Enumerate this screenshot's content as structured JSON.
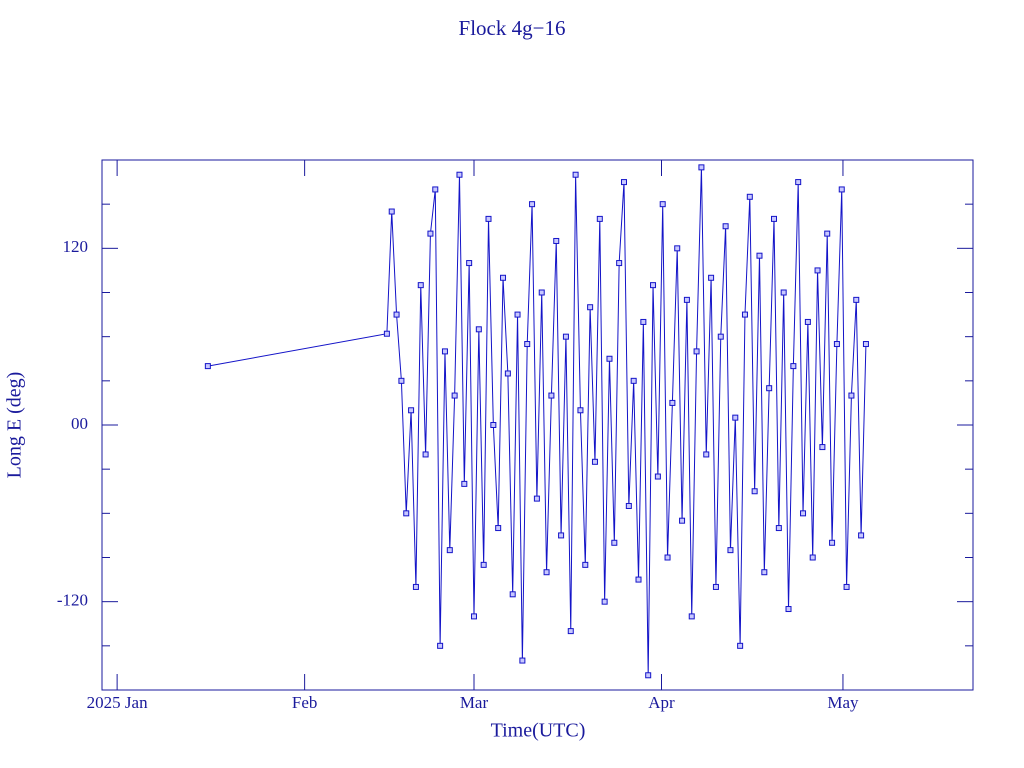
{
  "chart_data": {
    "type": "line",
    "title": "Flock 4g−16",
    "x_label": "Time(UTC)",
    "y_label": "Long E (deg)",
    "x": [
      15,
      44.6,
      45.4,
      46.2,
      47,
      47.8,
      48.6,
      49.4,
      50.2,
      51,
      51.8,
      52.6,
      53.4,
      54.2,
      55,
      55.8,
      56.6,
      57.4,
      58.2,
      59,
      59.8,
      60.6,
      61.4,
      62.2,
      63,
      63.8,
      64.6,
      65.4,
      66.2,
      67,
      67.8,
      68.6,
      69.4,
      70.2,
      71,
      71.8,
      72.6,
      73.4,
      74.2,
      75,
      75.8,
      76.6,
      77.4,
      78.2,
      79,
      79.8,
      80.6,
      81.4,
      82.2,
      83,
      83.8,
      84.6,
      85.4,
      86.2,
      87,
      87.8,
      88.6,
      89.4,
      90.2,
      91,
      91.8,
      92.6,
      93.4,
      94.2,
      95,
      95.8,
      96.6,
      97.4,
      98.2,
      99,
      99.8,
      100.6,
      101.4,
      102.2,
      103,
      103.8,
      104.6,
      105.4,
      106.2,
      107,
      107.8,
      108.6,
      109.4,
      110.2,
      111,
      111.8,
      112.6,
      113.4,
      114.2,
      115,
      115.8,
      116.6,
      117.4,
      118.2,
      119,
      119.8,
      120.6,
      121.4,
      122.2,
      123,
      123.8
    ],
    "series": [
      {
        "color": "#1414c8",
        "values": [
          40,
          62,
          145,
          75,
          30,
          -60,
          10,
          -110,
          95,
          -20,
          130,
          160,
          -150,
          50,
          -85,
          20,
          170,
          -40,
          110,
          -130,
          65,
          -95,
          140,
          0,
          -70,
          100,
          35,
          -115,
          75,
          -160,
          55,
          150,
          -50,
          90,
          -100,
          20,
          125,
          -75,
          60,
          -140,
          170,
          10,
          -95,
          80,
          -25,
          140,
          -120,
          45,
          -80,
          110,
          165,
          -55,
          30,
          -105,
          70,
          -170,
          95,
          -35,
          150,
          -90,
          15,
          120,
          -65,
          85,
          -130,
          50,
          175,
          -20,
          100,
          -110,
          60,
          135,
          -85,
          5,
          -150,
          75,
          155,
          -45,
          115,
          -100,
          25,
          140,
          -70,
          90,
          -125,
          40,
          165,
          -60,
          70,
          -90,
          105,
          -15,
          130,
          -80,
          55,
          160,
          -110,
          20,
          85,
          -75,
          55
        ]
      }
    ],
    "xlim": [
      -2.5,
      141.5
    ],
    "xticks": [
      {
        "value": 0,
        "label": "2025 Jan"
      },
      {
        "value": 31,
        "label": "Feb"
      },
      {
        "value": 59,
        "label": "Mar"
      },
      {
        "value": 90,
        "label": "Apr"
      },
      {
        "value": 120,
        "label": "May"
      }
    ],
    "ylim": [
      -180,
      180
    ],
    "yticks": [
      -120,
      {
        "value": 0,
        "label": "00"
      },
      120
    ],
    "yminorticks": [
      -150,
      -90,
      -60,
      -30,
      30,
      60,
      90,
      150
    ],
    "axis_color": "#1a1a9c"
  }
}
